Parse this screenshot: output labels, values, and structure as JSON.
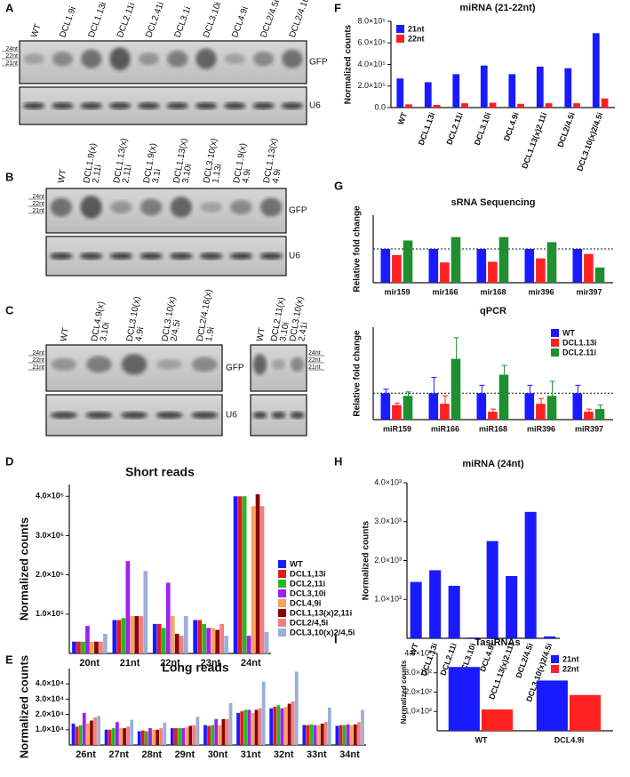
{
  "blots": [
    {
      "panel": "A",
      "lanes": [
        [
          "WT"
        ],
        [
          "DCL1.9i"
        ],
        [
          "DCL1.13i"
        ],
        [
          "DCL2.11i"
        ],
        [
          "DCL2.41i"
        ],
        [
          "DCL3.1i"
        ],
        [
          "DCL3.10i"
        ],
        [
          "DCL4.9i"
        ],
        [
          "DCL2/4.5i"
        ],
        [
          "DCL2/4.16i"
        ]
      ],
      "markers": [
        "24nt",
        "22nt",
        "21nt"
      ],
      "probes": [
        "GFP",
        "U6"
      ]
    },
    {
      "panel": "B",
      "lanes": [
        [
          "WT"
        ],
        [
          "DCL1.9(x)",
          "2.11i"
        ],
        [
          "DCL1.13(x)",
          "2.11i"
        ],
        [
          "DCL1.9(x)",
          "3.1i"
        ],
        [
          "DCL1.13(x)",
          "3.10i"
        ],
        [
          "DCL3.10(x)",
          "1.13i"
        ],
        [
          "DCL1.9(x)",
          "4.9i"
        ],
        [
          "DCL1.13(x)",
          "4.9i"
        ]
      ],
      "markers": [
        "24nt",
        "22nt",
        "21nt"
      ],
      "probes": [
        "GFP",
        "U6"
      ]
    },
    {
      "panel": "C",
      "lanes": [
        [
          "WT"
        ],
        [
          "DCL4.9(x)",
          "3.10i"
        ],
        [
          "DCL3.10(x)",
          "4.9i"
        ],
        [
          "DCL3.10(x)",
          "2/4.5i"
        ],
        [
          "DCL2/4.16(x)",
          "1.9i"
        ]
      ],
      "markers": [
        "24nt",
        "22nt",
        "21nt"
      ],
      "probes": [
        "GFP",
        "U6"
      ]
    },
    {
      "lanes": [
        [
          "WT"
        ],
        [
          "DCL2.11(x)",
          "3.10i"
        ],
        [
          "DCL3.10(x)",
          "2.41i"
        ]
      ],
      "markers": [
        "24nt",
        "22nt",
        "21nt"
      ]
    }
  ],
  "chart_data": [
    {
      "type": "bar",
      "panel": "F",
      "title": "miRNA (21-22nt)",
      "y_label": "Normalized counts",
      "categories": [
        "WT",
        "DCL1.13i",
        "DCL2.11i",
        "DCL3.10i",
        "DCL4.9i",
        "DCL1.13(x)2.11i",
        "DCL2/4.5i",
        "DCL3.10(x)2/4.5i"
      ],
      "series": [
        {
          "name": "21nt",
          "color": "#1a1aff",
          "values": [
            270000,
            235000,
            310000,
            390000,
            310000,
            380000,
            365000,
            690000
          ]
        },
        {
          "name": "22nt",
          "color": "#ff2020",
          "values": [
            30000,
            25000,
            40000,
            45000,
            35000,
            40000,
            40000,
            85000
          ]
        }
      ],
      "ylim": [
        0,
        800000
      ],
      "yticks": [
        {
          "value": 0,
          "label": "0.0"
        },
        {
          "value": 200000,
          "label": "2.0×10⁵"
        },
        {
          "value": 400000,
          "label": "4.0×10⁵"
        },
        {
          "value": 600000,
          "label": "6.0×10⁵"
        },
        {
          "value": 800000,
          "label": "8.0×10⁵"
        }
      ],
      "legend": "upper left"
    },
    {
      "type": "bar",
      "panel": "G",
      "title": "sRNA Sequencing",
      "y_label": "Relative fold change",
      "categories": [
        "mir159",
        "mir166",
        "mir168",
        "mir396",
        "mir397"
      ],
      "series": [
        {
          "color": "#1a1aff",
          "values": [
            1,
            1,
            1,
            1,
            1
          ]
        },
        {
          "color": "#ff2020",
          "values": [
            0.82,
            0.6,
            0.62,
            0.72,
            0.85
          ]
        },
        {
          "color": "#1f8f2f",
          "values": [
            1.25,
            1.35,
            1.35,
            1.2,
            0.45
          ]
        }
      ],
      "ylim": [
        0,
        2
      ],
      "refline": 1
    },
    {
      "type": "bar",
      "title": "qPCR",
      "y_label": "Relative fold change",
      "categories": [
        "miR159",
        "miR166",
        "miR168",
        "miR396",
        "miR397"
      ],
      "series": [
        {
          "name": "WT",
          "color": "#1a1aff",
          "values": [
            1,
            1,
            1,
            1,
            1
          ],
          "errors": [
            0.15,
            0.6,
            0.3,
            0.3,
            0.3
          ]
        },
        {
          "name": "DCL1.13i",
          "color": "#ff2020",
          "values": [
            0.55,
            0.6,
            0.3,
            0.6,
            0.3
          ],
          "errors": [
            0.08,
            0.3,
            0.1,
            0.2,
            0.1
          ]
        },
        {
          "name": "DCL2.11i",
          "color": "#1f8f2f",
          "values": [
            0.9,
            2.3,
            1.7,
            0.9,
            0.4
          ],
          "errors": [
            0.15,
            0.8,
            0.35,
            0.55,
            0.15
          ]
        }
      ],
      "ylim": [
        0,
        3.5
      ],
      "refline": 1,
      "legend": "upper right"
    },
    {
      "type": "bar",
      "panel": "D",
      "title": "Short reads",
      "y_label": "Normalized counts",
      "categories": [
        "20nt",
        "21nt",
        "22nt",
        "23nt",
        "24nt"
      ],
      "series": [
        {
          "name": "WT",
          "color": "#1a1aff",
          "values": [
            30000,
            85000,
            75000,
            85000,
            400000
          ]
        },
        {
          "name": "DCL1,13i",
          "color": "#e31a1c",
          "values": [
            30000,
            85000,
            75000,
            85000,
            400000
          ]
        },
        {
          "name": "DCL2,11i",
          "color": "#22bb22",
          "values": [
            30000,
            90000,
            65000,
            75000,
            400000
          ]
        },
        {
          "name": "DCL3,10i",
          "color": "#a020f0",
          "values": [
            70000,
            235000,
            180000,
            65000,
            45000
          ]
        },
        {
          "name": "DCL4,9i",
          "color": "#f4a460",
          "values": [
            30000,
            95000,
            95000,
            65000,
            375000
          ]
        },
        {
          "name": "DCL1,13(x)2,11i",
          "color": "#8b0000",
          "values": [
            30000,
            95000,
            50000,
            60000,
            405000
          ]
        },
        {
          "name": "DCL2/4,5i",
          "color": "#f08080",
          "values": [
            30000,
            95000,
            45000,
            75000,
            375000
          ]
        },
        {
          "name": "DCL3,10(x)2/4,5i",
          "color": "#9ab0d8",
          "values": [
            50000,
            210000,
            95000,
            45000,
            55000
          ]
        }
      ],
      "ylim": [
        0,
        430000
      ],
      "yticks": [
        {
          "value": 100000,
          "label": "1.0×10⁵"
        },
        {
          "value": 200000,
          "label": "2.0×10⁵"
        },
        {
          "value": 300000,
          "label": "3.0×10⁵"
        },
        {
          "value": 400000,
          "label": "4.0×10⁵"
        }
      ],
      "legend": "right"
    },
    {
      "type": "bar",
      "panel": "E",
      "title": "Long reads",
      "y_label": "Normalized counts",
      "categories": [
        "26nt",
        "27nt",
        "28nt",
        "29nt",
        "30nt",
        "31nt",
        "32nt",
        "33nt",
        "34nt"
      ],
      "series": [
        {
          "color": "#1a1aff",
          "values": [
            14000,
            10000,
            9000,
            11000,
            13000,
            21000,
            24000,
            13000,
            12500
          ]
        },
        {
          "color": "#e31a1c",
          "values": [
            12000,
            10000,
            9500,
            11000,
            12500,
            22000,
            25000,
            13000,
            13000
          ]
        },
        {
          "color": "#22bb22",
          "values": [
            13000,
            11000,
            9000,
            11000,
            13000,
            23000,
            26000,
            13500,
            13000
          ]
        },
        {
          "color": "#a020f0",
          "values": [
            21000,
            15000,
            11000,
            11000,
            17000,
            23000,
            24000,
            13000,
            13500
          ]
        },
        {
          "color": "#f4a460",
          "values": [
            14000,
            11000,
            10000,
            11500,
            13000,
            21000,
            25000,
            13000,
            13000
          ]
        },
        {
          "color": "#8b0000",
          "values": [
            16000,
            11000,
            10000,
            12500,
            17000,
            23000,
            27000,
            14000,
            13500
          ]
        },
        {
          "color": "#f08080",
          "values": [
            18000,
            12000,
            11000,
            13000,
            17000,
            24000,
            28500,
            15000,
            15000
          ]
        },
        {
          "color": "#9ab0d8",
          "values": [
            19000,
            16500,
            14500,
            18500,
            27500,
            41500,
            48000,
            24500,
            23000
          ]
        }
      ],
      "ylim": [
        0,
        50000
      ],
      "yticks": [
        {
          "value": 10000,
          "label": "1.0×10⁴"
        },
        {
          "value": 20000,
          "label": "2.0×10⁴"
        },
        {
          "value": 30000,
          "label": "3.0×10⁴"
        },
        {
          "value": 40000,
          "label": "4.0×10⁴"
        }
      ]
    },
    {
      "type": "bar",
      "panel": "H",
      "title": "miRNA (24nt)",
      "y_label": "Normalized counts",
      "categories": [
        "WT",
        "DCL1.13i",
        "DCL2.11i",
        "DCL3.10i",
        "DCL4.9i",
        "DCL1.13(x)2.11i",
        "DCL2/4.5i",
        "DCL3.10(x)2/4.5i"
      ],
      "series": [
        {
          "color": "#1a1aff",
          "values": [
            1450,
            1750,
            1350,
            20,
            2500,
            1600,
            3250,
            50
          ]
        }
      ],
      "ylim": [
        0,
        4000
      ],
      "yticks": [
        {
          "value": 1000,
          "label": "1.0×10³"
        },
        {
          "value": 2000,
          "label": "2.0×10³"
        },
        {
          "value": 3000,
          "label": "3.0×10³"
        },
        {
          "value": 4000,
          "label": "4.0×10³"
        }
      ]
    },
    {
      "type": "bar",
      "panel": "I",
      "title": "TasiRNAs",
      "y_label": "Normalized counts",
      "categories": [
        "WT",
        "DCL4.9i"
      ],
      "series": [
        {
          "name": "21nt",
          "color": "#1a1aff",
          "values": [
            330,
            260
          ]
        },
        {
          "name": "22nt",
          "color": "#ff2020",
          "values": [
            110,
            185
          ]
        }
      ],
      "ylim": [
        0,
        400
      ],
      "yticks": [
        {
          "value": 100,
          "label": "1.0×10²"
        },
        {
          "value": 200,
          "label": "2.0×10²"
        },
        {
          "value": 300,
          "label": "3.0×10²"
        },
        {
          "value": 400,
          "label": "4.0×10²"
        }
      ],
      "legend": "upper right"
    }
  ]
}
